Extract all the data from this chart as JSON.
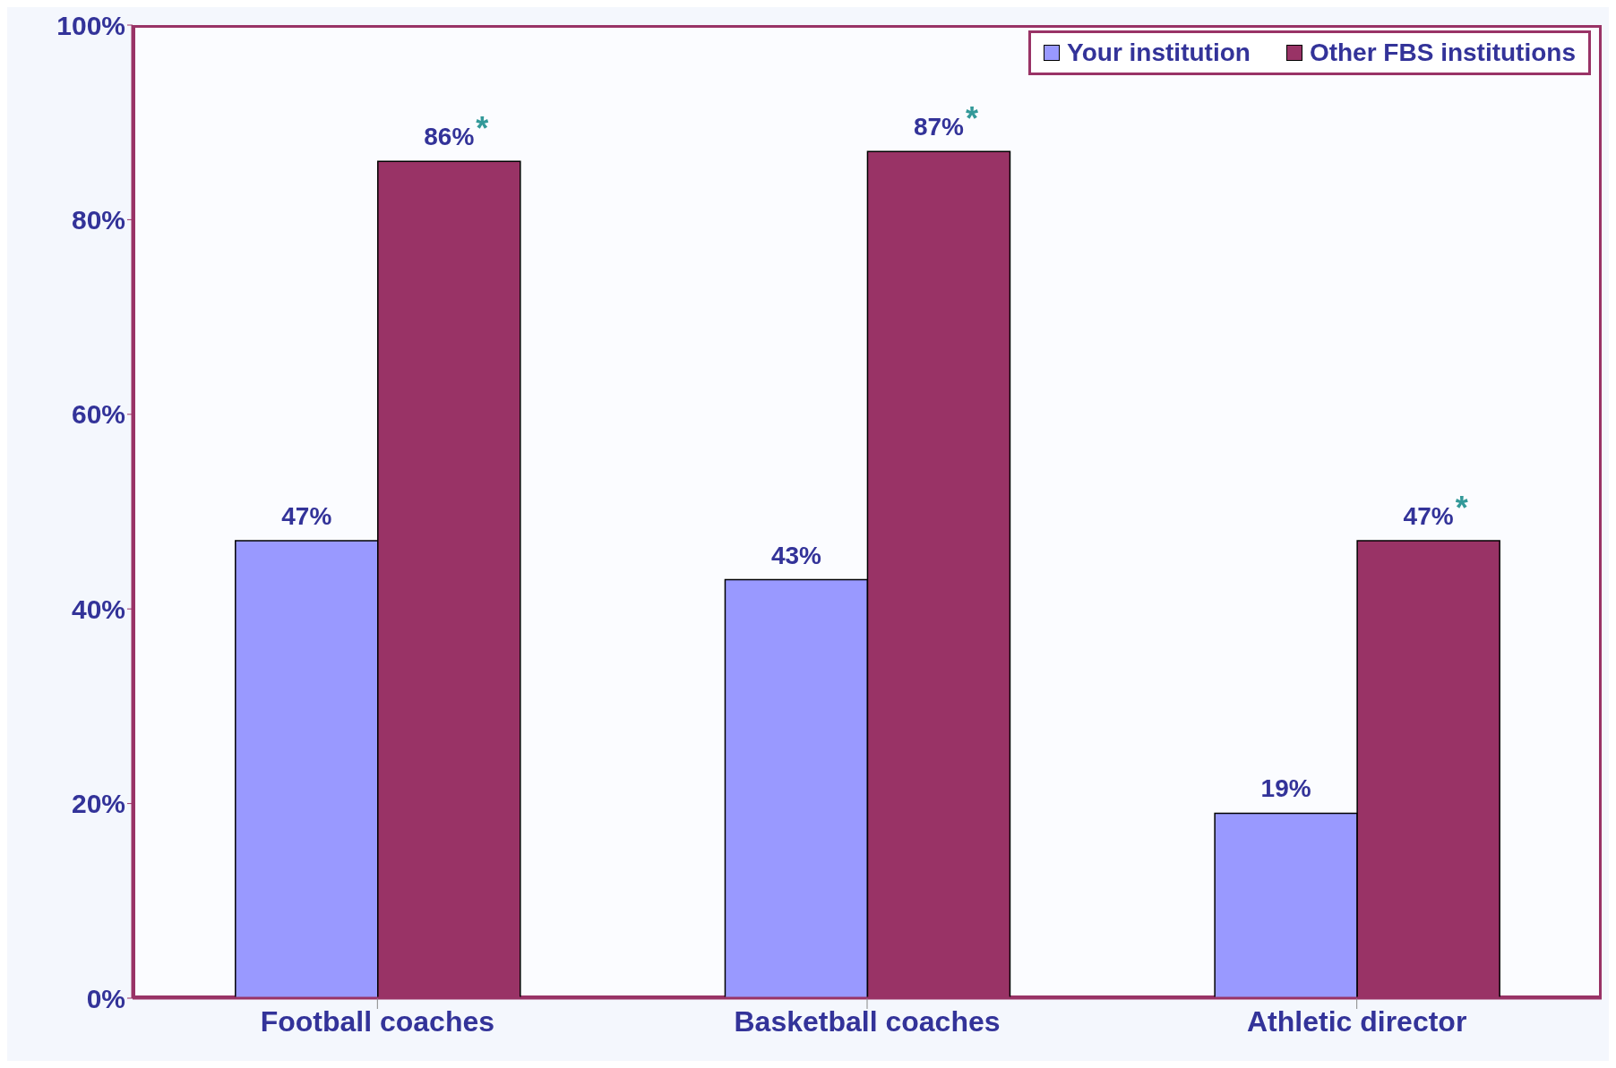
{
  "chart_data": {
    "type": "bar",
    "categories": [
      "Football coaches",
      "Basketball coaches",
      "Athletic director"
    ],
    "series": [
      {
        "name": "Your institution",
        "color": "#9999ff",
        "values": [
          47,
          43,
          19
        ]
      },
      {
        "name": "Other FBS institutions",
        "color": "#993366",
        "values": [
          86,
          87,
          47
        ]
      }
    ],
    "ylim": [
      0,
      100
    ],
    "yticks": [
      {
        "value": 0,
        "label": "0%"
      },
      {
        "value": 20,
        "label": "20%"
      },
      {
        "value": 40,
        "label": "40%"
      },
      {
        "value": 60,
        "label": "60%"
      },
      {
        "value": 80,
        "label": "80%"
      },
      {
        "value": 100,
        "label": "100%"
      }
    ],
    "value_labels": [
      [
        "47%",
        "43%",
        "19%"
      ],
      [
        "86%",
        "87%",
        "47%"
      ]
    ],
    "annotations": [
      "*",
      "*",
      "*"
    ],
    "grid": false,
    "legend": "top right"
  }
}
